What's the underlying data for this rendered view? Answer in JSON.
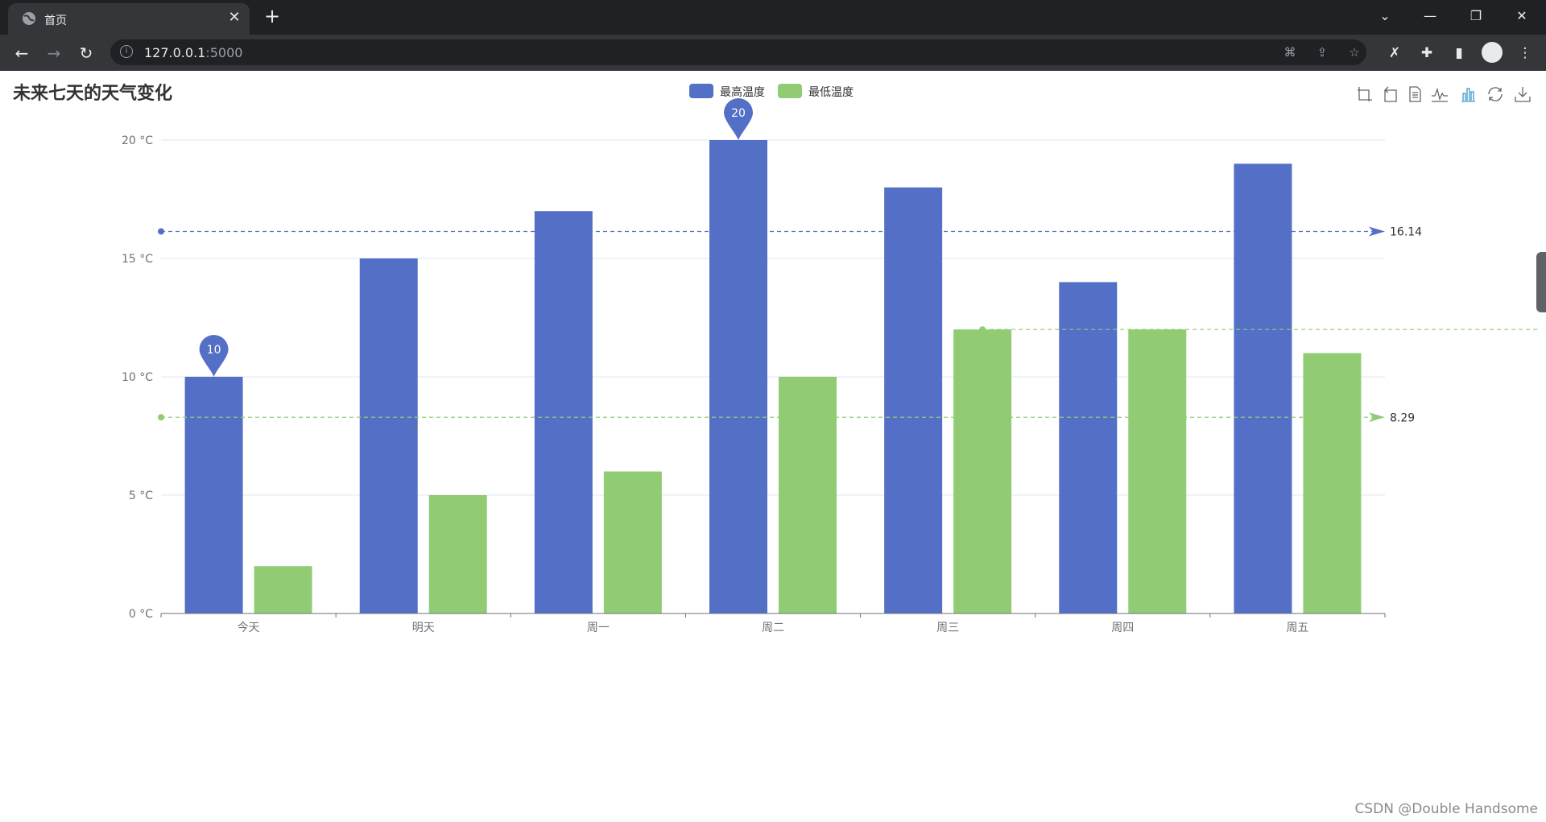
{
  "browser": {
    "tab_title": "首页",
    "url_host": "127.0.0.1",
    "url_port": ":5000"
  },
  "page": {
    "watermark": "CSDN @Double  Handsome"
  },
  "toolbox": {
    "icons": [
      "zoom-icon",
      "zoom-reset-icon",
      "data-view-icon",
      "line-chart-icon",
      "bar-chart-icon",
      "restore-icon",
      "save-image-icon"
    ]
  },
  "chart_data": {
    "type": "bar",
    "title": "未来七天的天气变化",
    "categories": [
      "今天",
      "明天",
      "周一",
      "周二",
      "周三",
      "周四",
      "周五"
    ],
    "series": [
      {
        "name": "最高温度",
        "color": "#5470c6",
        "values": [
          10,
          15,
          17,
          20,
          18,
          14,
          19
        ],
        "mark_points": [
          {
            "label": "10",
            "category_index": 0,
            "value": 10
          },
          {
            "label": "20",
            "category_index": 3,
            "value": 20
          }
        ],
        "mark_line_average": {
          "label": "16.14",
          "value": 16.14
        }
      },
      {
        "name": "最低温度",
        "color": "#91cc75",
        "values": [
          2,
          5,
          6,
          10,
          12,
          12,
          11
        ],
        "mark_line_average": {
          "label": "8.29",
          "value": 8.29
        },
        "mark_line_max": {
          "category_index": 4,
          "value": 12
        }
      }
    ],
    "y_ticks": [
      "0 °C",
      "5 °C",
      "10 °C",
      "15 °C",
      "20 °C"
    ],
    "ylim": [
      0,
      20
    ],
    "y_tick_values": [
      0,
      5,
      10,
      15,
      20
    ],
    "grid": true,
    "legend_position": "top-center"
  }
}
